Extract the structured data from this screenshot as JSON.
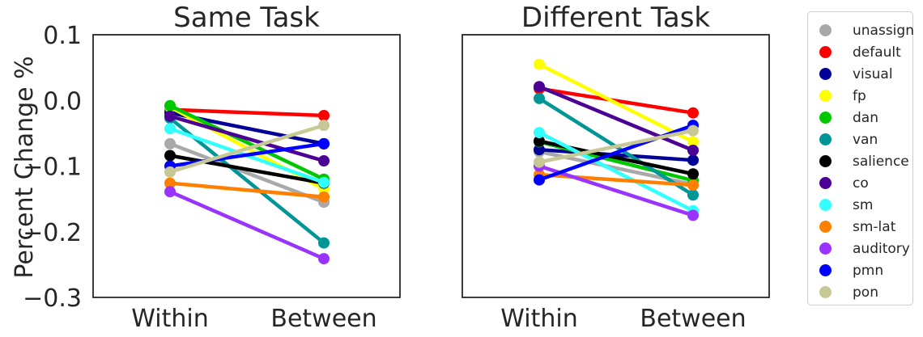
{
  "chart_data": {
    "type": "line",
    "ylabel": "Percent Change %",
    "ylim": [
      -0.3,
      0.1
    ],
    "yticks": [
      0.1,
      0.0,
      -0.1,
      -0.2,
      -0.3
    ],
    "ytick_labels": [
      "0.1",
      "0.0",
      "−0.1",
      "−0.2",
      "−0.3"
    ],
    "categories": [
      "Within",
      "Between"
    ],
    "legend_position": "right",
    "networks": [
      {
        "name": "unassign",
        "color": "#a9a9a9"
      },
      {
        "name": "default",
        "color": "#ff0000"
      },
      {
        "name": "visual",
        "color": "#000096"
      },
      {
        "name": "fp",
        "color": "#ffff00"
      },
      {
        "name": "dan",
        "color": "#00c800"
      },
      {
        "name": "van",
        "color": "#009696"
      },
      {
        "name": "salience",
        "color": "#000000"
      },
      {
        "name": "co",
        "color": "#4b0096"
      },
      {
        "name": "sm",
        "color": "#33ffff"
      },
      {
        "name": "sm-lat",
        "color": "#ff8000"
      },
      {
        "name": "auditory",
        "color": "#9933ff"
      },
      {
        "name": "pmn",
        "color": "#0000ff"
      },
      {
        "name": "pon",
        "color": "#c8c896"
      }
    ],
    "panels": [
      {
        "title": "Same Task",
        "series": [
          {
            "name": "unassign",
            "values": [
              -0.066,
              -0.155
            ]
          },
          {
            "name": "default",
            "values": [
              -0.014,
              -0.023
            ]
          },
          {
            "name": "visual",
            "values": [
              -0.019,
              -0.066
            ]
          },
          {
            "name": "fp",
            "values": [
              -0.01,
              -0.135
            ]
          },
          {
            "name": "dan",
            "values": [
              -0.008,
              -0.12
            ]
          },
          {
            "name": "van",
            "values": [
              -0.027,
              -0.217
            ]
          },
          {
            "name": "salience",
            "values": [
              -0.084,
              -0.126
            ]
          },
          {
            "name": "co",
            "values": [
              -0.024,
              -0.092
            ]
          },
          {
            "name": "sm",
            "values": [
              -0.043,
              -0.125
            ]
          },
          {
            "name": "sm-lat",
            "values": [
              -0.126,
              -0.147
            ]
          },
          {
            "name": "auditory",
            "values": [
              -0.139,
              -0.241
            ]
          },
          {
            "name": "pmn",
            "values": [
              -0.1,
              -0.066
            ]
          },
          {
            "name": "pon",
            "values": [
              -0.109,
              -0.038
            ]
          }
        ]
      },
      {
        "title": "Different Task",
        "series": [
          {
            "name": "unassign",
            "values": [
              -0.078,
              -0.128
            ]
          },
          {
            "name": "default",
            "values": [
              0.018,
              -0.019
            ]
          },
          {
            "name": "visual",
            "values": [
              -0.075,
              -0.091
            ]
          },
          {
            "name": "fp",
            "values": [
              0.055,
              -0.063
            ]
          },
          {
            "name": "dan",
            "values": [
              -0.063,
              -0.122
            ]
          },
          {
            "name": "van",
            "values": [
              0.003,
              -0.144
            ]
          },
          {
            "name": "salience",
            "values": [
              -0.062,
              -0.112
            ]
          },
          {
            "name": "co",
            "values": [
              0.021,
              -0.076
            ]
          },
          {
            "name": "sm",
            "values": [
              -0.049,
              -0.168
            ]
          },
          {
            "name": "sm-lat",
            "values": [
              -0.113,
              -0.129
            ]
          },
          {
            "name": "auditory",
            "values": [
              -0.1,
              -0.175
            ]
          },
          {
            "name": "pmn",
            "values": [
              -0.121,
              -0.038
            ]
          },
          {
            "name": "pon",
            "values": [
              -0.094,
              -0.046
            ]
          }
        ]
      }
    ]
  }
}
